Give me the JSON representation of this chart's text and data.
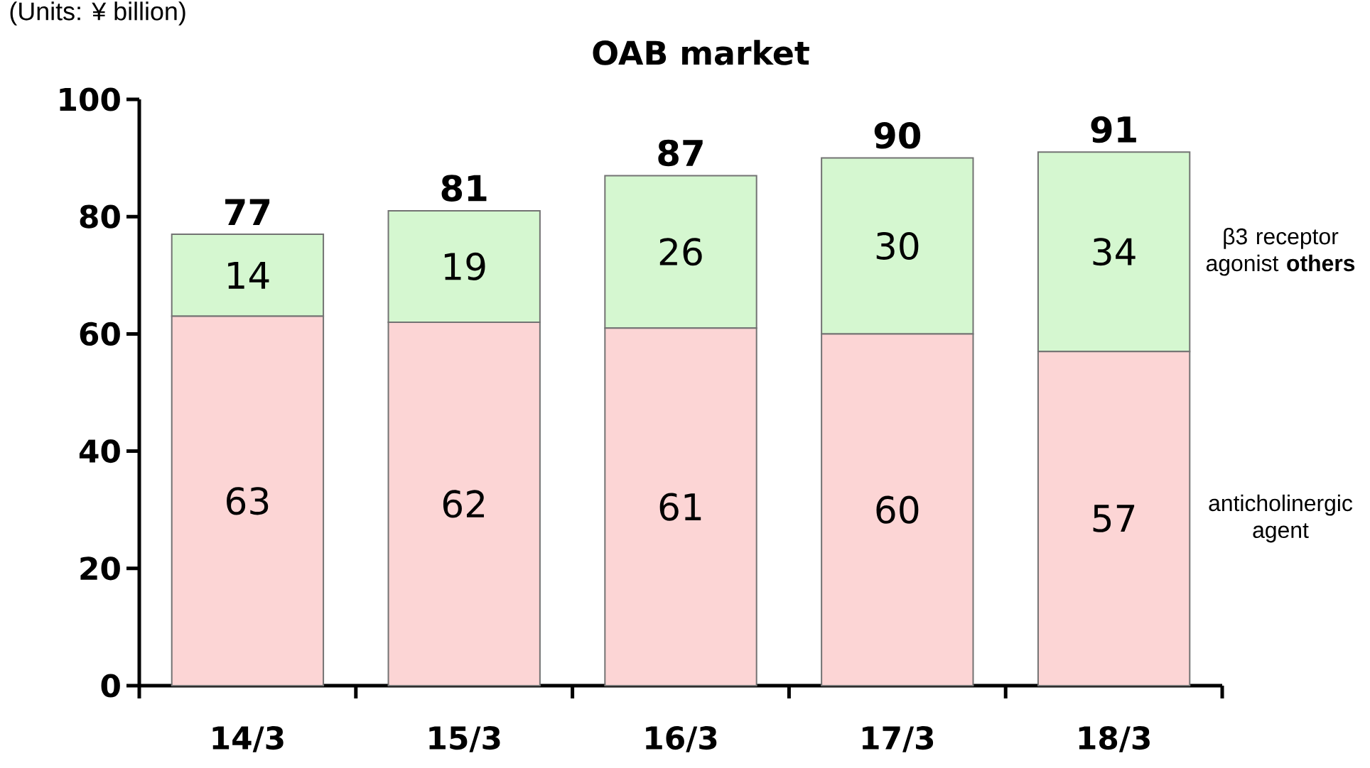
{
  "chart_data": {
    "type": "bar",
    "stacked": true,
    "title": "OAB market",
    "annotations": [
      "(Units: ¥ billion)"
    ],
    "categories": [
      "14/3",
      "15/3",
      "16/3",
      "17/3",
      "18/3"
    ],
    "series": [
      {
        "name": "anticholinergic agent",
        "color": "#fcd5d5",
        "values": [
          63,
          62,
          61,
          60,
          57
        ]
      },
      {
        "name": "β3 receptor agonist **others**",
        "color": "#d5f7d0",
        "values": [
          14,
          19,
          26,
          30,
          34
        ]
      }
    ],
    "ylim": [
      0,
      100
    ],
    "yticks": [
      0,
      20,
      40,
      60,
      80,
      100
    ],
    "data_labels": true,
    "totals": [
      "77",
      "81",
      "87",
      "90",
      "91"
    ]
  }
}
